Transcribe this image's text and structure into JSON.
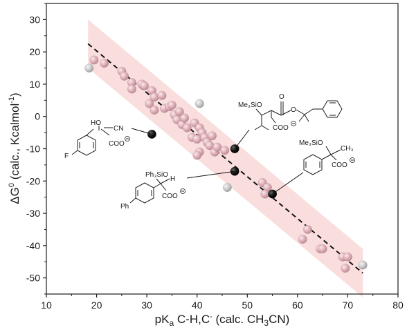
{
  "chart_data": {
    "type": "scatter",
    "xlabel": "pKa C-H,C⁻ (calc. CH₃CN)",
    "ylabel": "ΔG⁰ (calc., Kcalmol⁻¹)",
    "xlim": [
      10,
      80
    ],
    "ylim": [
      -55,
      35
    ],
    "xticks": [
      10,
      20,
      30,
      40,
      50,
      60,
      70,
      80
    ],
    "yticks": [
      30,
      20,
      10,
      0,
      -10,
      -20,
      -30,
      -40,
      -50
    ],
    "grid": false,
    "fit_line": {
      "x": [
        18.3,
        73.0
      ],
      "y": [
        22.5,
        -48.5
      ],
      "style": "dashed"
    },
    "confidence_band": {
      "half_width_y": 7.5,
      "color": "#f8d2d2"
    },
    "series": [
      {
        "color": "#d9aab0",
        "points": [
          [
            19.5,
            17.5
          ],
          [
            21.5,
            16.5
          ],
          [
            25.0,
            14.0
          ],
          [
            25.5,
            12.5
          ],
          [
            27.0,
            10.5
          ],
          [
            27.0,
            8.5
          ],
          [
            29.0,
            10.0
          ],
          [
            29.5,
            9.5
          ],
          [
            30.5,
            4.0
          ],
          [
            31.0,
            8.0
          ],
          [
            31.5,
            6.0
          ],
          [
            31.5,
            2.0
          ],
          [
            33.0,
            6.5
          ],
          [
            33.5,
            2.5
          ],
          [
            34.5,
            3.0
          ],
          [
            35.0,
            3.5
          ],
          [
            35.5,
            0.5
          ],
          [
            36.0,
            -1.0
          ],
          [
            36.5,
            1.5
          ],
          [
            37.0,
            -2.5
          ],
          [
            37.5,
            -0.5
          ],
          [
            38.0,
            -3.5
          ],
          [
            39.0,
            -6.5
          ],
          [
            39.5,
            -2.0
          ],
          [
            40.5,
            -3.5
          ],
          [
            41.0,
            -5.0
          ],
          [
            40.0,
            -7.0
          ],
          [
            40.5,
            -11.0
          ],
          [
            40.0,
            -12.0
          ],
          [
            41.5,
            -6.5
          ],
          [
            42.0,
            -8.0
          ],
          [
            42.5,
            -9.0
          ],
          [
            43.0,
            -6.0
          ],
          [
            43.5,
            -11.0
          ],
          [
            44.0,
            -9.5
          ],
          [
            45.5,
            -10.5
          ],
          [
            53.0,
            -20.5
          ],
          [
            54.0,
            -22.0
          ],
          [
            53.5,
            -24.0
          ],
          [
            62.0,
            -35.0
          ],
          [
            61.0,
            -38.0
          ],
          [
            64.5,
            -41.0
          ],
          [
            65.0,
            -41.0
          ],
          [
            69.0,
            -43.5
          ],
          [
            70.0,
            -43.5
          ],
          [
            69.5,
            -47.0
          ]
        ]
      },
      {
        "color": "#c4c4c4",
        "points": [
          [
            18.5,
            15.0
          ],
          [
            40.5,
            4.0
          ],
          [
            46.0,
            -22.0
          ],
          [
            73.0,
            -46.0
          ]
        ]
      },
      {
        "color": "#111111",
        "points": [
          [
            31.0,
            -5.5
          ],
          [
            47.5,
            -10.0
          ],
          [
            47.5,
            -17.0
          ],
          [
            55.0,
            -24.0
          ]
        ]
      }
    ]
  },
  "molecules": {
    "m1": {
      "ho": "HO",
      "cn": "CN",
      "coo": "COO",
      "f": "F"
    },
    "m2": {
      "me3sio": "Me₃SiO",
      "o": "O",
      "coo": "COO"
    },
    "m3": {
      "me3sio": "Me₃SiO",
      "ch3": "CH₃",
      "coo": "COO"
    },
    "m4": {
      "ph3sio": "Ph₃SiO",
      "h": "H",
      "coo": "COO",
      "ph": "Ph"
    }
  }
}
